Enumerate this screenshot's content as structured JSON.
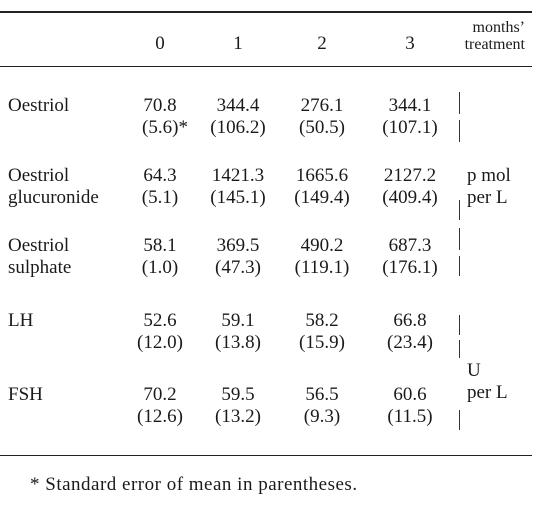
{
  "table": {
    "columns": [
      "0",
      "1",
      "2",
      "3"
    ],
    "last_column": [
      "months’",
      "treatment"
    ],
    "rows": [
      {
        "label": [
          "Oestriol"
        ],
        "means": [
          "70.8",
          "344.4",
          "276.1",
          "344.1"
        ],
        "errors": [
          "(5.6)*",
          "(106.2)",
          "(50.5)",
          "(107.1)"
        ]
      },
      {
        "label": [
          "Oestriol",
          "glucuronide"
        ],
        "means": [
          "64.3",
          "1421.3",
          "1665.6",
          "2127.2"
        ],
        "errors": [
          "(5.1)",
          "(145.1)",
          "(149.4)",
          "(409.4)"
        ]
      },
      {
        "label": [
          "Oestriol",
          "sulphate"
        ],
        "means": [
          "58.1",
          "369.5",
          "490.2",
          "687.3"
        ],
        "errors": [
          "(1.0)",
          "(47.3)",
          "(119.1)",
          "(176.1)"
        ]
      },
      {
        "label": [
          "LH"
        ],
        "means": [
          "52.6",
          "59.1",
          "58.2",
          "66.8"
        ],
        "errors": [
          "(12.0)",
          "(13.8)",
          "(15.9)",
          "(23.4)"
        ]
      },
      {
        "label": [
          "FSH"
        ],
        "means": [
          "70.2",
          "59.5",
          "56.5",
          "60.6"
        ],
        "errors": [
          "(12.6)",
          "(13.2)",
          "(9.3)",
          "(11.5)"
        ]
      }
    ],
    "units": [
      [
        "p mol",
        "per L"
      ],
      [
        "U",
        "per L"
      ]
    ],
    "footnote": "* Standard error of mean in parentheses."
  }
}
